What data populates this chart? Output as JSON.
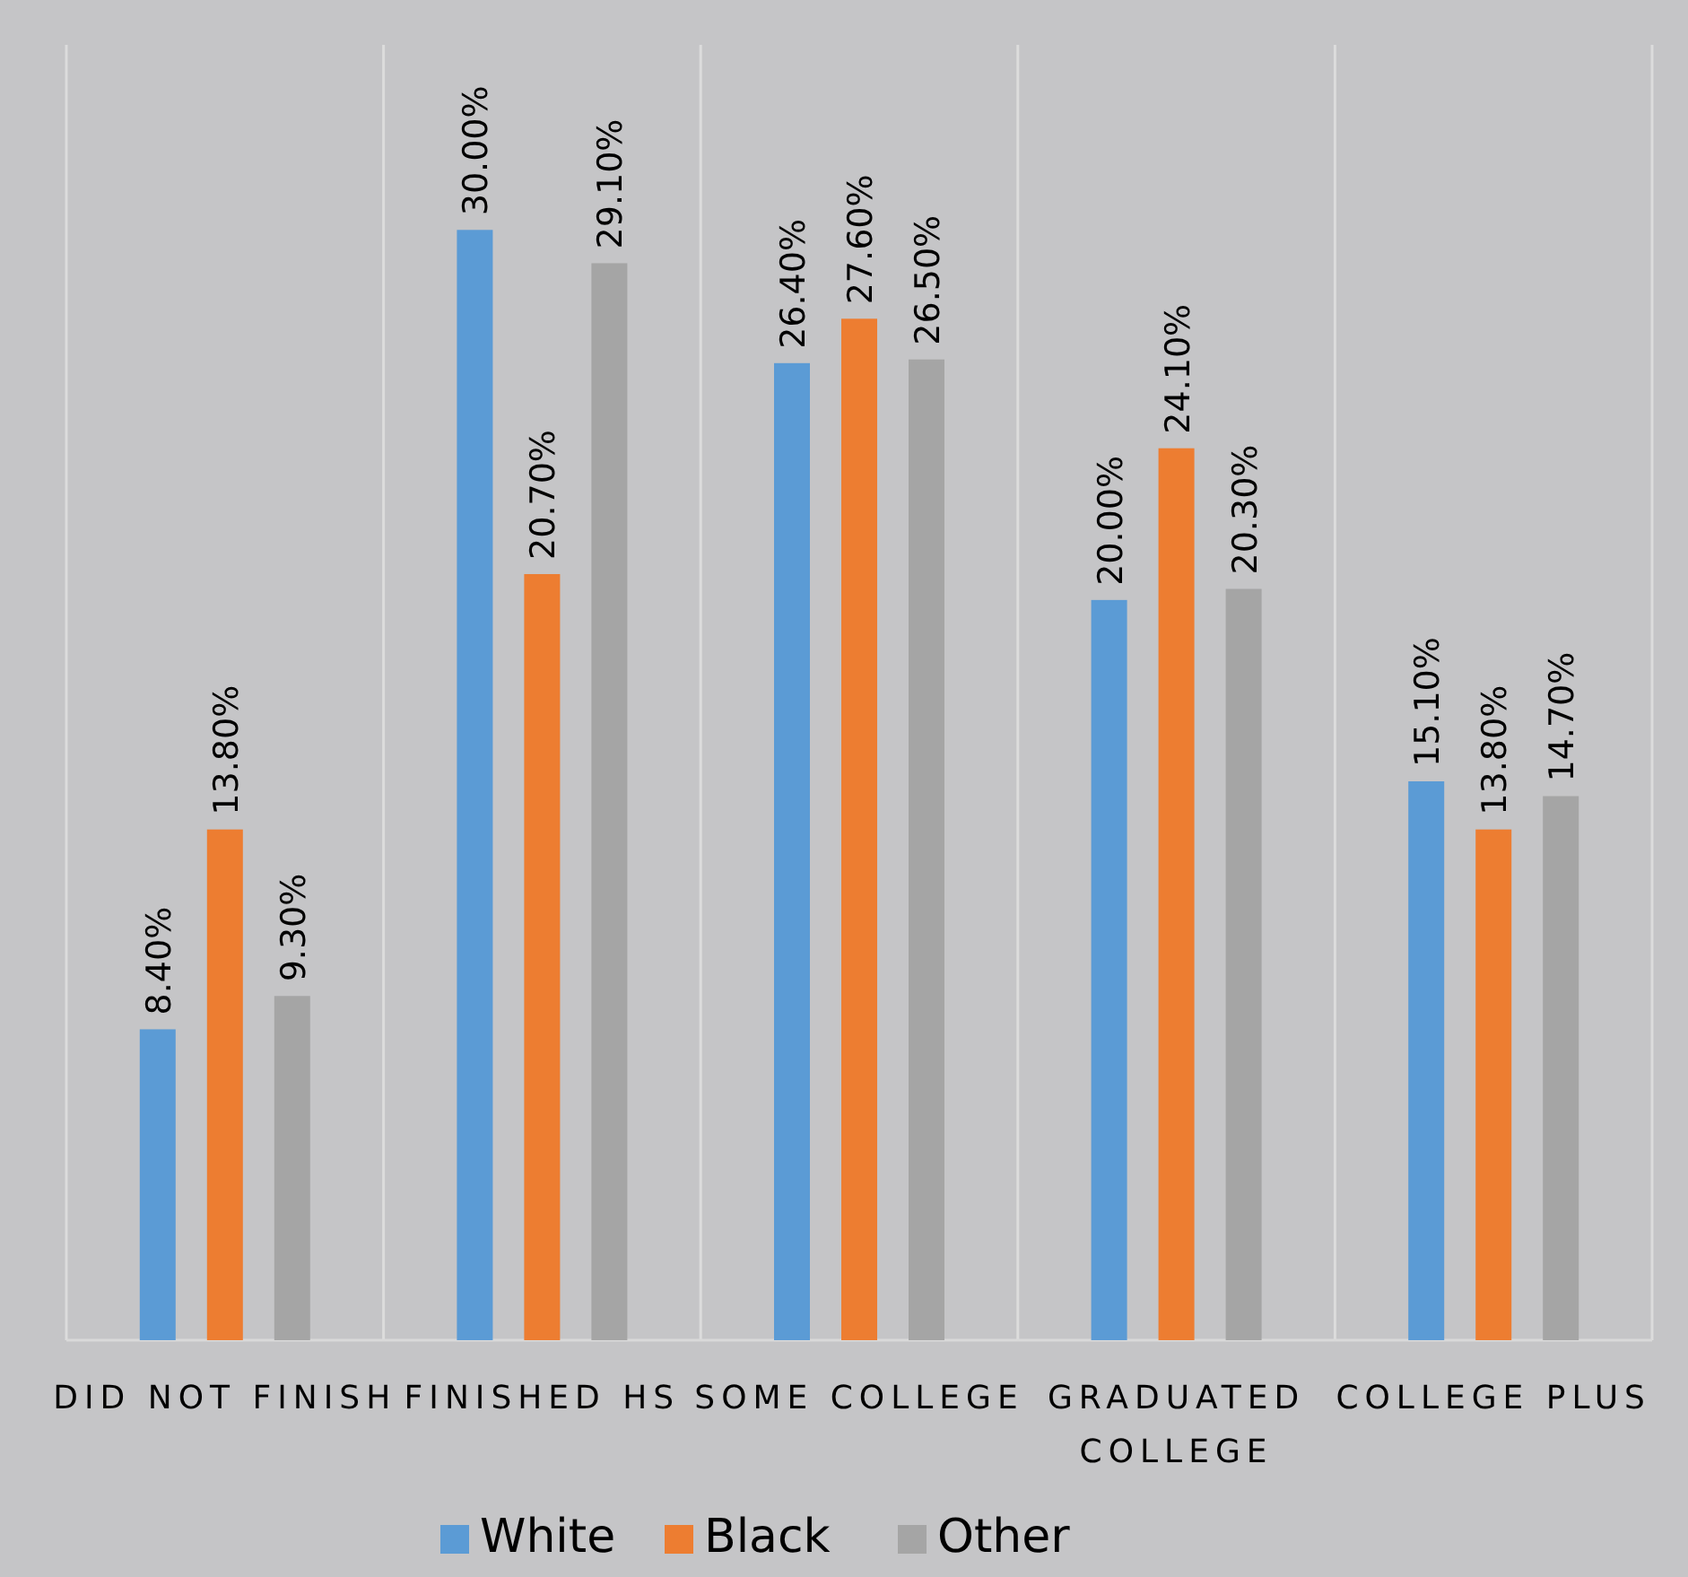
{
  "chart_data": {
    "type": "bar",
    "categories": [
      "DID NOT FINISH",
      "FINISHED HS",
      "SOME COLLEGE",
      "GRADUATED COLLEGE",
      "COLLEGE PLUS"
    ],
    "series": [
      {
        "name": "White",
        "color": "#5b9bd5",
        "values": [
          8.4,
          30.0,
          26.4,
          20.0,
          15.1
        ],
        "value_labels": [
          "8.40%",
          "30.00%",
          "26.40%",
          "20.00%",
          "15.10%"
        ]
      },
      {
        "name": "Black",
        "color": "#ed7d31",
        "values": [
          13.8,
          20.7,
          27.6,
          24.1,
          13.8
        ],
        "value_labels": [
          "13.80%",
          "20.70%",
          "27.60%",
          "24.10%",
          "13.80%"
        ]
      },
      {
        "name": "Other",
        "color": "#a5a5a5",
        "values": [
          9.3,
          29.1,
          26.5,
          20.3,
          14.7
        ],
        "value_labels": [
          "9.30%",
          "29.10%",
          "26.50%",
          "20.30%",
          "14.70%"
        ]
      }
    ],
    "ylim": [
      0,
      35
    ],
    "grid": "x",
    "legend": "bottom"
  }
}
